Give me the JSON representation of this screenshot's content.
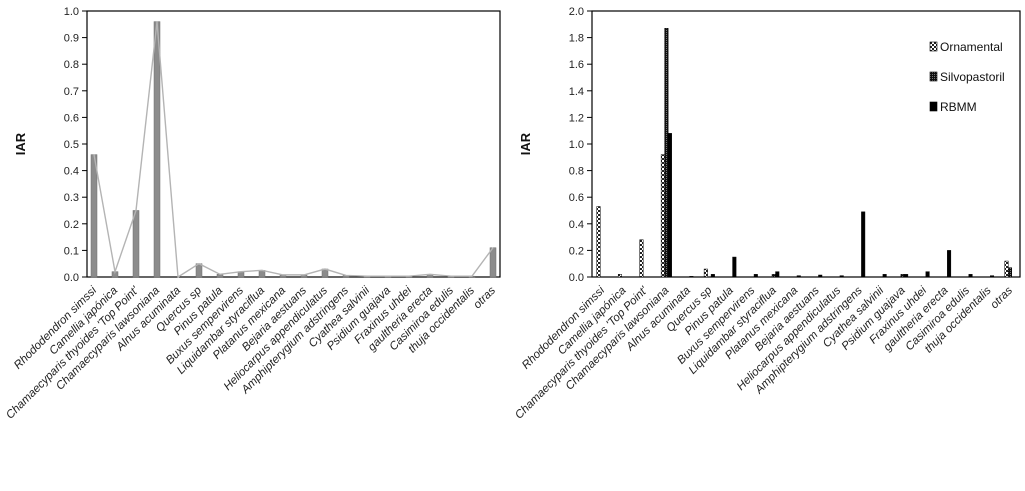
{
  "chart_data": [
    {
      "type": "bar",
      "ylabel": "IAR",
      "ylim": [
        0,
        1.0
      ],
      "yticks": [
        "0.0",
        "0.1",
        "0.2",
        "0.3",
        "0.4",
        "0.5",
        "0.6",
        "0.7",
        "0.8",
        "0.9",
        "1.0"
      ],
      "grid": false,
      "overlay_line": true,
      "categories": [
        "Rhododendron simssi",
        "Camellia japónica",
        "Chamaecyparis thyoides 'Top Point'",
        "Chamaecyparis lawsoniana",
        "Alnus acuminata",
        "Quercus sp",
        "Pinus patula",
        "Buxus sempervirens",
        "Liquidambar styraciflua",
        "Platanus mexicana",
        "Bejaria aestuans",
        "Heliocarpus appendiculatus",
        "Amphipterygium adstringens",
        "Cyathea salvinii",
        "Psidium guajava",
        "Fraxinus uhdei",
        "gaultheria erecta",
        "Casimiroa edulis",
        "thuja occidentalis",
        "otras"
      ],
      "values": [
        0.46,
        0.02,
        0.25,
        0.96,
        0.0,
        0.05,
        0.01,
        0.02,
        0.025,
        0.008,
        0.008,
        0.03,
        0.006,
        0.003,
        0.003,
        0.003,
        0.01,
        0.003,
        0.003,
        0.11
      ],
      "bar_color": "#8c8c8c",
      "line_color": "#b4b4b4"
    },
    {
      "type": "bar",
      "ylabel": "IAR",
      "ylim": [
        0,
        2.0
      ],
      "yticks": [
        "0.0",
        "0.2",
        "0.4",
        "0.6",
        "0.8",
        "1.0",
        "1.2",
        "1.4",
        "1.6",
        "1.8",
        "2.0"
      ],
      "grid": false,
      "legend_position": "top-right",
      "categories": [
        "Rhododendron simssi",
        "Camellia japónica",
        "Chamaecyparis thyoides 'Top Point'",
        "Chamaecyparis lawsoniana",
        "Alnus acuminata",
        "Quercus sp",
        "Pinus patula",
        "Buxus sempervirens",
        "Liquidambar styraciflua",
        "Platanus mexicana",
        "Bejaria aestuans",
        "Heliocarpus appendiculatus",
        "Amphipterygium adstringens",
        "Cyathea salvinii",
        "Psidium guajava",
        "Fraxinus uhdei",
        "gaultheria erecta",
        "Casimiroa edulis",
        "thuja occidentalis",
        "otras"
      ],
      "series": [
        {
          "name": "Ornamental",
          "values": [
            0.53,
            0.02,
            0.28,
            0.92,
            0.0,
            0.06,
            0.0,
            0.0,
            0.0,
            0.0,
            0.0,
            0.0,
            0.0,
            0.0,
            0.0,
            0.0,
            0.0,
            0.0,
            0.0,
            0.12
          ],
          "pattern": "ornamental"
        },
        {
          "name": "Silvopastoril",
          "values": [
            0.0,
            0.0,
            0.0,
            1.87,
            0.0,
            0.0,
            0.0,
            0.0,
            0.02,
            0.0,
            0.0,
            0.0,
            0.0,
            0.0,
            0.02,
            0.0,
            0.0,
            0.0,
            0.0,
            0.07
          ],
          "pattern": "silvo"
        },
        {
          "name": "RBMM",
          "values": [
            0.0,
            0.0,
            0.0,
            1.08,
            0.005,
            0.02,
            0.15,
            0.02,
            0.04,
            0.01,
            0.015,
            0.01,
            0.49,
            0.02,
            0.02,
            0.04,
            0.2,
            0.02,
            0.01,
            0.0
          ],
          "pattern": "solid"
        }
      ]
    }
  ]
}
